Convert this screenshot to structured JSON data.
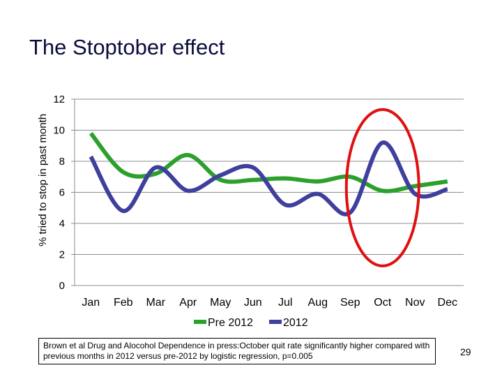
{
  "slide": {
    "title": "The Stoptober effect",
    "citation": "Brown et al Drug and Alocohol Dependence in press:October quit rate significantly higher compared with previous months in 2012 versus pre-2012 by logistic regression, p=0.005",
    "page_number": "29"
  },
  "chart_data": {
    "type": "line",
    "title": "The Stoptober effect",
    "xlabel": "",
    "ylabel": "% tried to stop in past month",
    "categories": [
      "Jan",
      "Feb",
      "Mar",
      "Apr",
      "May",
      "Jun",
      "Jul",
      "Aug",
      "Sep",
      "Oct",
      "Nov",
      "Dec"
    ],
    "series": [
      {
        "name": "Pre 2012",
        "color": "#2ca02c",
        "values": [
          9.8,
          7.3,
          7.2,
          8.4,
          6.8,
          6.8,
          6.9,
          6.7,
          7.0,
          6.1,
          6.4,
          6.7
        ]
      },
      {
        "name": "2012",
        "color": "#3f3f9e",
        "values": [
          8.3,
          4.8,
          7.6,
          6.1,
          7.1,
          7.6,
          5.2,
          5.9,
          4.7,
          9.2,
          5.9,
          6.2
        ]
      }
    ],
    "ylim": [
      0,
      12
    ],
    "yticks": [
      "0",
      "2",
      "4",
      "6",
      "8",
      "10",
      "12"
    ],
    "grid": true,
    "legend": "bottom",
    "highlight": {
      "label": "Oct",
      "color": "#e01010"
    }
  }
}
